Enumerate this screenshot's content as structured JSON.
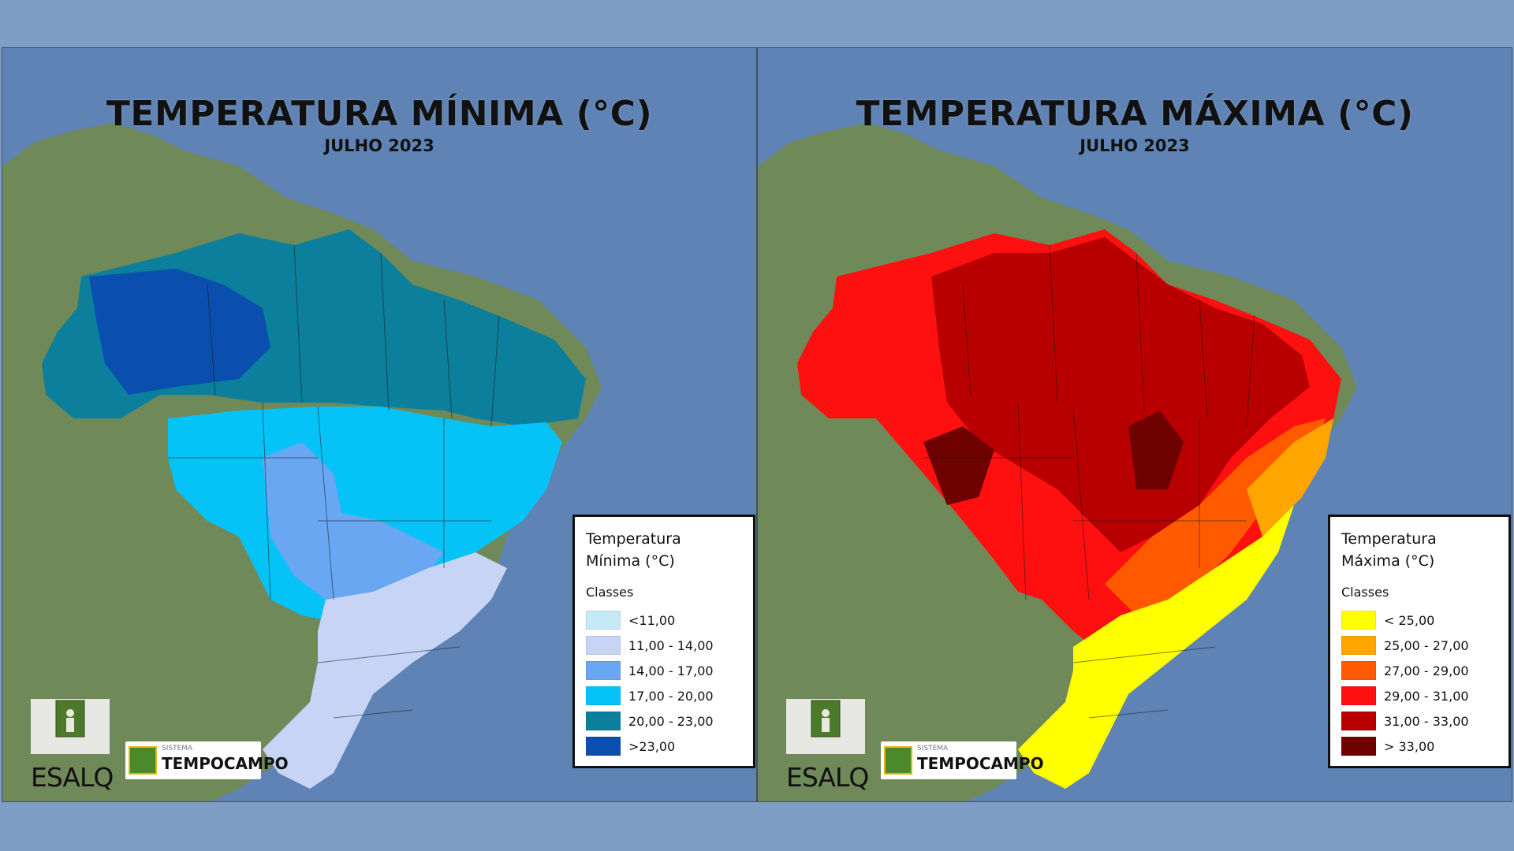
{
  "maps": [
    {
      "id": "min",
      "title": "TEMPERATURA MÍNIMA (°C)",
      "subtitle": "JULHO 2023",
      "legend": {
        "title_line1": "Temperatura",
        "title_line2": "Mínima (°C)",
        "classes_label": "Classes",
        "items": [
          {
            "label": "<11,00",
            "color": "#c6e9f6"
          },
          {
            "label": "11,00 - 14,00",
            "color": "#c7d4f5"
          },
          {
            "label": "14,00 - 17,00",
            "color": "#6aa7f2"
          },
          {
            "label": "17,00 - 20,00",
            "color": "#06c3f7"
          },
          {
            "label": "20,00 - 23,00",
            "color": "#0b7f9c"
          },
          {
            "label": ">23,00",
            "color": "#0a4fae"
          }
        ]
      }
    },
    {
      "id": "max",
      "title": "TEMPERATURA MÁXIMA (°C)",
      "subtitle": "JULHO 2023",
      "legend": {
        "title_line1": "Temperatura",
        "title_line2": "Máxima (°C)",
        "classes_label": "Classes",
        "items": [
          {
            "label": "< 25,00",
            "color": "#ffff00"
          },
          {
            "label": "25,00 - 27,00",
            "color": "#ffa500"
          },
          {
            "label": "27,00 - 29,00",
            "color": "#ff5a00"
          },
          {
            "label": "29,00 - 31,00",
            "color": "#ff1010"
          },
          {
            "label": "31,00 - 33,00",
            "color": "#b80000"
          },
          {
            "label": "> 33,00",
            "color": "#6e0000"
          }
        ]
      }
    }
  ],
  "logos": {
    "esalq": "ESALQ",
    "sistema": "SISTEMA",
    "tempocampo": "TEMPOCAMPO"
  },
  "colors": {
    "ocean": "#5f83b4",
    "land": "#6f8a58",
    "page_background": "#7f9ec6"
  }
}
